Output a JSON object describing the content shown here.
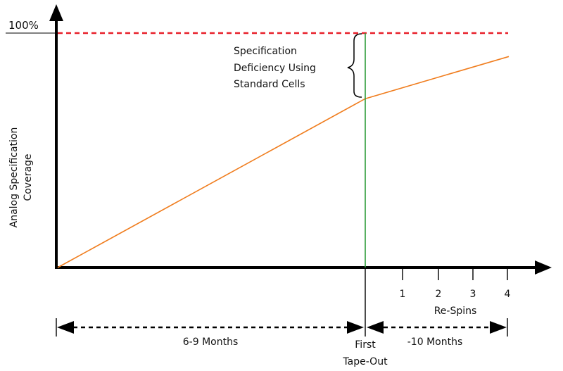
{
  "chart_data": {
    "type": "line",
    "y_top_label": "100%",
    "ylabel": [
      "Analog Specification",
      "Coverage"
    ],
    "reference_line": {
      "value": 100,
      "color": "#e8202a",
      "style": "dashed"
    },
    "milestone": {
      "label_line1": "First",
      "label_line2": "Tape-Out",
      "color": "#2e9d3a"
    },
    "series": [
      {
        "color": "#f07d1e",
        "points": [
          {
            "x": 0,
            "y": 0
          },
          {
            "x": 1,
            "y": 72
          },
          {
            "x": 2,
            "y": 90
          }
        ]
      }
    ],
    "gap_annotation": [
      "Specification",
      "Deficiency Using",
      "Standard Cells"
    ],
    "respin_ticks": [
      "1",
      "2",
      "3",
      "4"
    ],
    "respin_label": "Re-Spins",
    "timeline": {
      "before": "6-9 Months",
      "after": "-10 Months"
    }
  }
}
